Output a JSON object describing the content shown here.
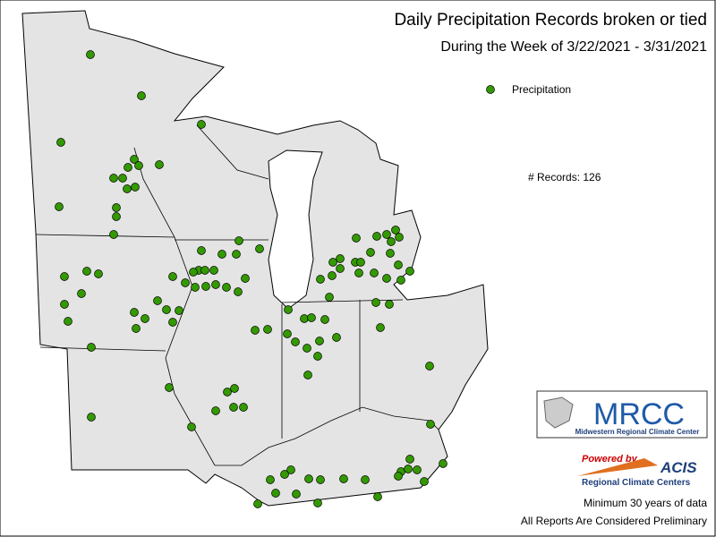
{
  "title": "Daily Precipitation Records broken or tied",
  "subtitle": "During the Week of 3/22/2021 - 3/31/2021",
  "legend": {
    "label": "Precipitation",
    "color": "#339900"
  },
  "records": "# Records: 126",
  "logo": {
    "name": "MRCC",
    "full_name": "Midwestern Regional Climate Center"
  },
  "powered": {
    "text": "Powered by",
    "name": "ACIS",
    "sub": "Regional Climate Centers"
  },
  "notes": [
    "Minimum 30 years of data",
    "All Reports Are Considered Preliminary"
  ]
}
